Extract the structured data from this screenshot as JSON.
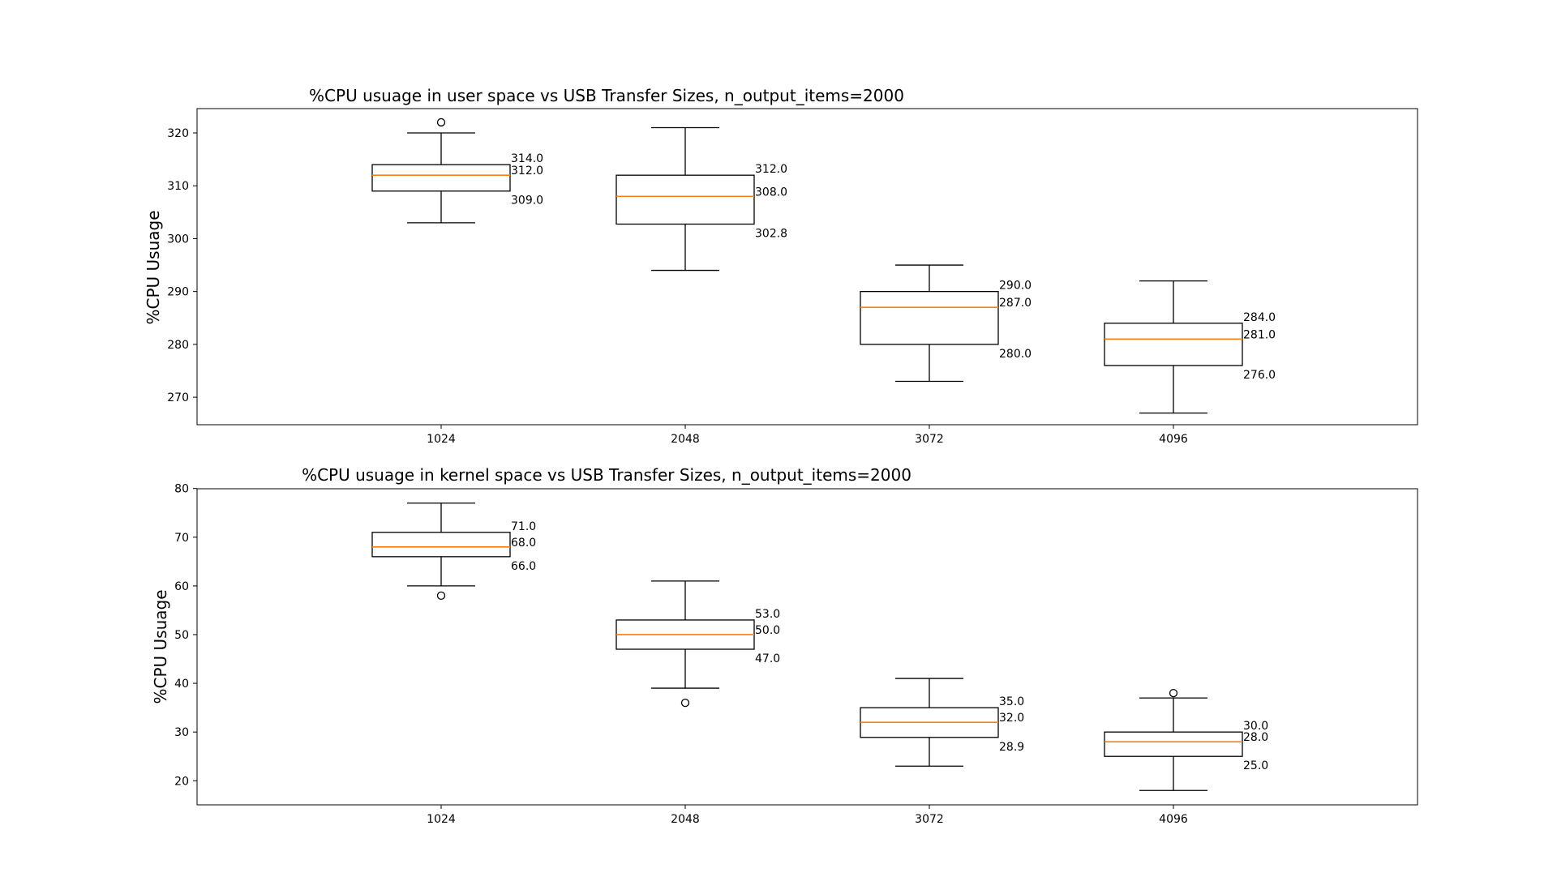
{
  "chart_data": [
    {
      "type": "box",
      "title": "%CPU usuage in user space vs USB Transfer Sizes, n_output_items=2000",
      "xlabel": "",
      "ylabel": "%CPU Usuage",
      "ylim": [
        264.8,
        324.6
      ],
      "yticks": [
        "270",
        "280",
        "290",
        "300",
        "310",
        "320"
      ],
      "ytick_values": [
        270,
        280,
        290,
        300,
        310,
        320
      ],
      "categories": [
        "1024",
        "2048",
        "3072",
        "4096"
      ],
      "boxes": [
        {
          "whisker_low": 303,
          "q1": 309.0,
          "median": 312.0,
          "q3": 314.0,
          "whisker_high": 320,
          "outliers": [
            322
          ],
          "labels": {
            "q3": "314.0",
            "median": "312.0",
            "q1": "309.0"
          }
        },
        {
          "whisker_low": 294,
          "q1": 302.75,
          "median": 308.0,
          "q3": 312.0,
          "whisker_high": 321,
          "outliers": [],
          "labels": {
            "q3": "312.0",
            "median": "308.0",
            "q1": "302.8"
          }
        },
        {
          "whisker_low": 273,
          "q1": 280.0,
          "median": 287.0,
          "q3": 290.0,
          "whisker_high": 295,
          "outliers": [],
          "labels": {
            "q3": "290.0",
            "median": "287.0",
            "q1": "280.0"
          }
        },
        {
          "whisker_low": 267,
          "q1": 276.0,
          "median": 281.0,
          "q3": 284.0,
          "whisker_high": 292,
          "outliers": [],
          "labels": {
            "q3": "284.0",
            "median": "281.0",
            "q1": "276.0"
          }
        }
      ],
      "box_color": "#000000",
      "median_color": "#ff7f0e",
      "grid": false
    },
    {
      "type": "box",
      "title": "%CPU usuage in kernel space vs USB Transfer Sizes, n_output_items=2000",
      "xlabel": "",
      "ylabel": "%CPU Usuage",
      "ylim": [
        15.05,
        79.95
      ],
      "yticks": [
        "20",
        "30",
        "40",
        "50",
        "60",
        "70",
        "80"
      ],
      "ytick_values": [
        20,
        30,
        40,
        50,
        60,
        70,
        80
      ],
      "categories": [
        "1024",
        "2048",
        "3072",
        "4096"
      ],
      "boxes": [
        {
          "whisker_low": 60,
          "q1": 66.0,
          "median": 68.0,
          "q3": 71.0,
          "whisker_high": 77,
          "outliers": [
            58
          ],
          "labels": {
            "q3": "71.0",
            "median": "68.0",
            "q1": "66.0"
          }
        },
        {
          "whisker_low": 39,
          "q1": 47.0,
          "median": 50.0,
          "q3": 53.0,
          "whisker_high": 61,
          "outliers": [
            36
          ],
          "labels": {
            "q3": "53.0",
            "median": "50.0",
            "q1": "47.0"
          }
        },
        {
          "whisker_low": 23,
          "q1": 28.9,
          "median": 32.0,
          "q3": 35.0,
          "whisker_high": 41,
          "outliers": [],
          "labels": {
            "q3": "35.0",
            "median": "32.0",
            "q1": "28.9"
          }
        },
        {
          "whisker_low": 18,
          "q1": 25.0,
          "median": 28.0,
          "q3": 30.0,
          "whisker_high": 37,
          "outliers": [
            38
          ],
          "labels": {
            "q3": "30.0",
            "median": "28.0",
            "q1": "25.0"
          }
        }
      ],
      "box_color": "#000000",
      "median_color": "#ff7f0e",
      "grid": false
    }
  ]
}
